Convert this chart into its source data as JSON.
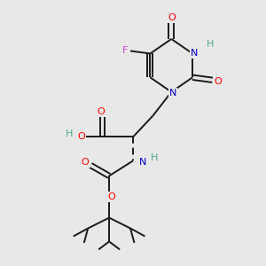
{
  "background_color": "#e8e8e8",
  "bond_color": "#1a1a1a",
  "atom_colors": {
    "O": "#ff0000",
    "N": "#0000cc",
    "F": "#cc44cc",
    "H": "#4aaa88",
    "C": "#1a1a1a"
  },
  "figsize": [
    3.0,
    3.0
  ],
  "dpi": 100,
  "xlim": [
    0,
    10
  ],
  "ylim": [
    0,
    10
  ]
}
